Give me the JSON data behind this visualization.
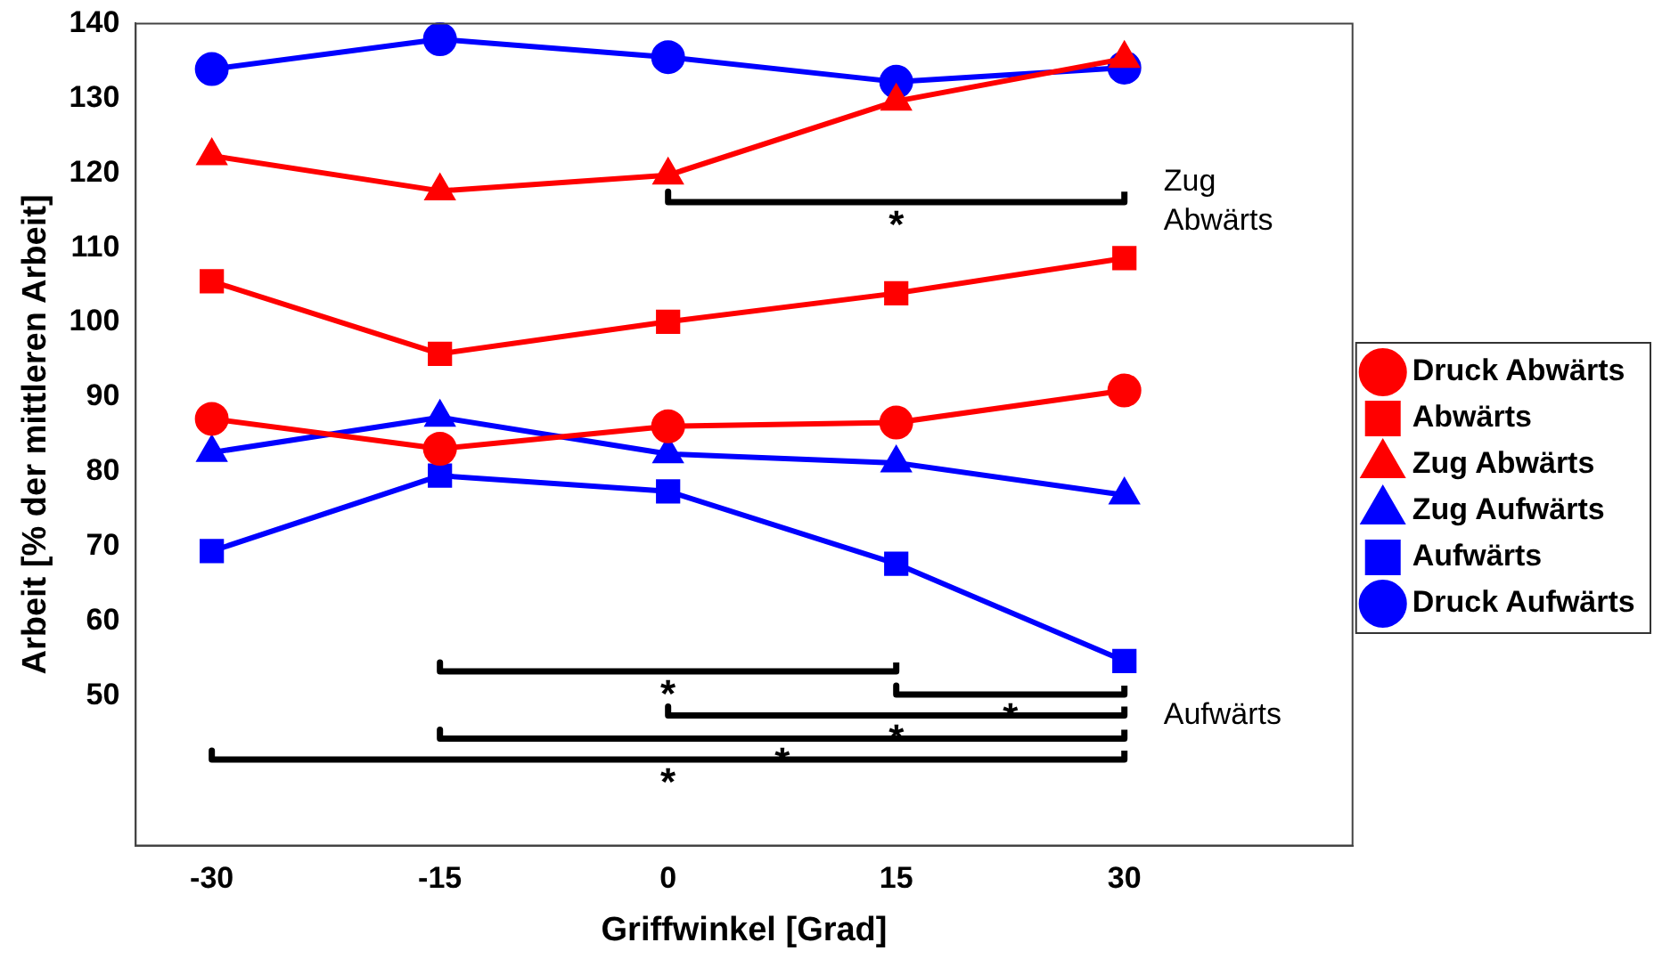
{
  "chart_data": {
    "type": "line",
    "xlabel": "Griffwinkel [Grad]",
    "ylabel": "Arbeit [% der mittleren Arbeit]",
    "x": [
      -30,
      -15,
      0,
      15,
      30
    ],
    "xlim": [
      -35,
      45
    ],
    "xticks": [
      -30,
      -15,
      0,
      15,
      30
    ],
    "ylim": [
      30,
      140
    ],
    "yticks": [
      50,
      60,
      70,
      80,
      90,
      100,
      110,
      120,
      130,
      140
    ],
    "grid": false,
    "legend": "right",
    "line_style": "solid",
    "series": [
      {
        "name": "Druck Abwärts",
        "color": "#ff0000",
        "marker": "circle",
        "values": [
          87.1,
          83.1,
          86.1,
          86.6,
          90.9
        ]
      },
      {
        "name": "Abwärts",
        "color": "#ff0000",
        "marker": "square",
        "values": [
          105.5,
          95.8,
          100.1,
          103.9,
          108.6
        ]
      },
      {
        "name": "Zug Abwärts",
        "color": "#ff0000",
        "marker": "triangle",
        "values": [
          122.3,
          117.6,
          119.7,
          129.6,
          135.3
        ]
      },
      {
        "name": "Zug Aufwärts",
        "color": "#0000ff",
        "marker": "triangle",
        "values": [
          82.6,
          87.3,
          82.4,
          81.2,
          76.9
        ]
      },
      {
        "name": "Aufwärts",
        "color": "#0000ff",
        "marker": "square",
        "values": [
          69.4,
          79.5,
          77.4,
          67.7,
          54.7
        ]
      },
      {
        "name": "Druck Aufwärts",
        "color": "#0000ff",
        "marker": "circle",
        "values": [
          133.9,
          137.9,
          135.5,
          132.2,
          134.1
        ]
      },
      {
        "color": "#000000",
        "marker": "none",
        "x": [
          0,
          0,
          30,
          30
        ],
        "values": [
          117.5,
          116.1,
          116.1,
          117.5
        ]
      },
      {
        "color": "#000000",
        "marker": "none",
        "x": [
          -15,
          -15,
          15,
          15
        ],
        "values": [
          54.5,
          53.3,
          53.3,
          54.5
        ]
      },
      {
        "color": "#000000",
        "marker": "none",
        "x": [
          15,
          15,
          30,
          30
        ],
        "values": [
          51.4,
          50.2,
          50.2,
          51.4
        ]
      },
      {
        "color": "#000000",
        "marker": "none",
        "x": [
          0,
          0,
          30,
          30
        ],
        "values": [
          48.6,
          47.4,
          47.4,
          48.6
        ]
      },
      {
        "color": "#000000",
        "marker": "none",
        "x": [
          -15,
          -15,
          30,
          30
        ],
        "values": [
          45.5,
          44.3,
          44.3,
          45.5
        ]
      },
      {
        "color": "#000000",
        "marker": "none",
        "x": [
          -30,
          -30,
          30,
          30
        ],
        "values": [
          42.7,
          41.5,
          41.5,
          42.7
        ]
      }
    ],
    "annotations": [
      "*",
      "*",
      "*",
      "*",
      "*",
      "*",
      "Zug\nAbwärts",
      "Aufwärts"
    ]
  }
}
